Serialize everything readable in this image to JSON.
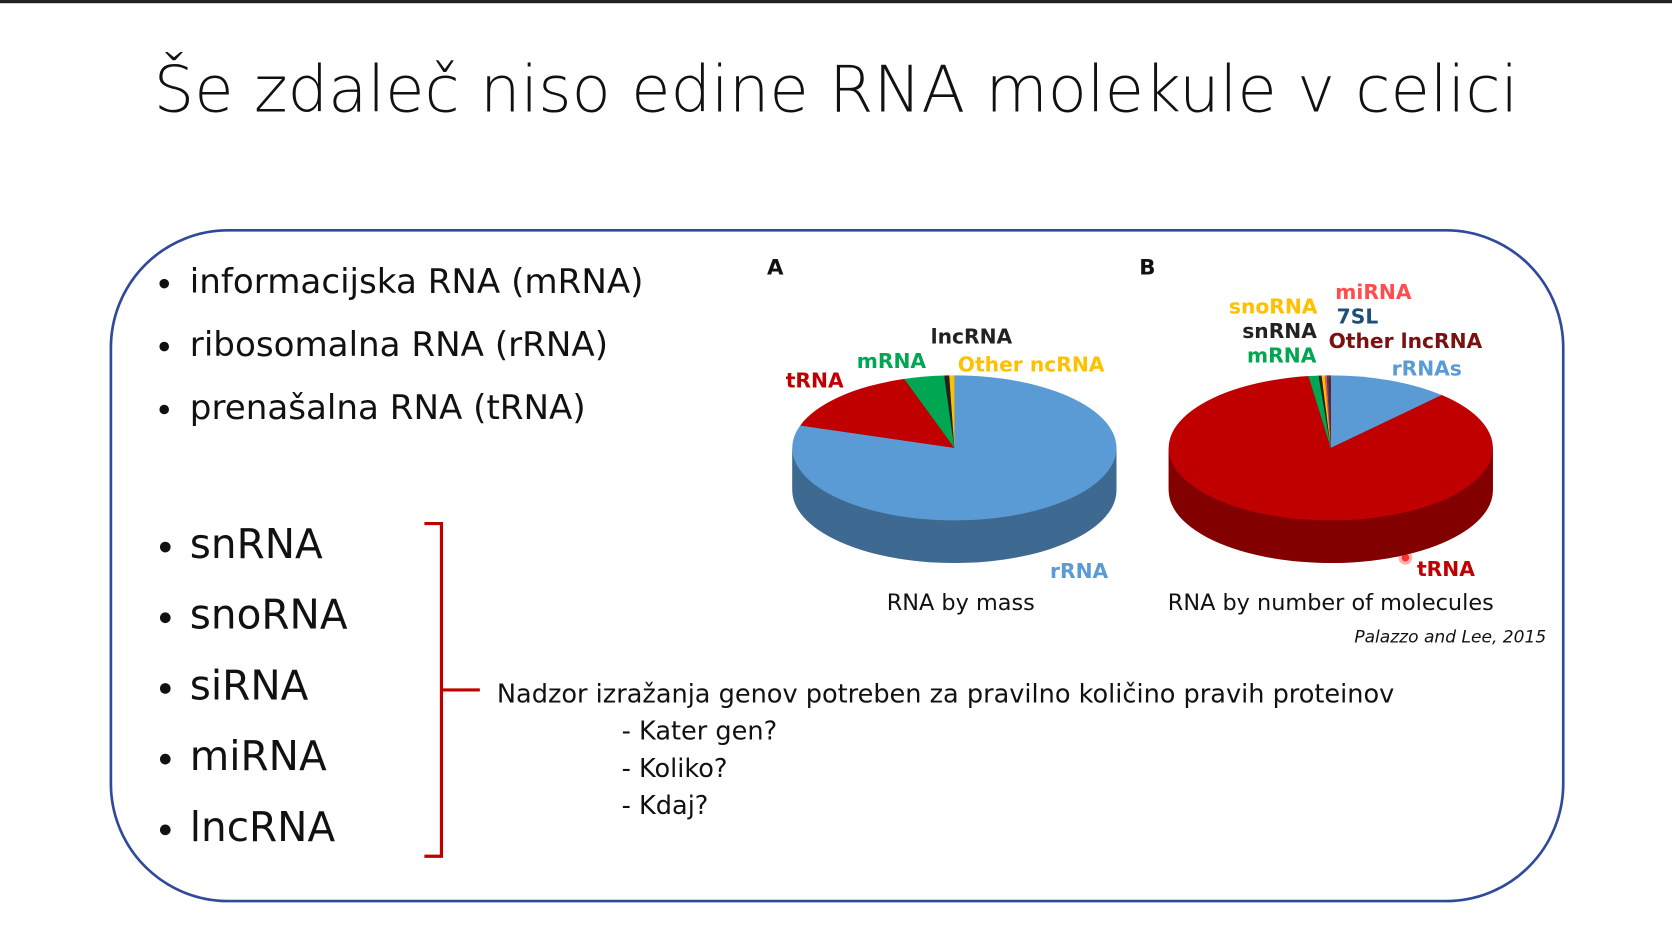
{
  "slide": {
    "title": "Še zdaleč niso edine RNA molekule v celici",
    "bullets_main": [
      "informacijska RNA (mRNA)",
      "ribosomalna RNA (rRNA)",
      "prenašalna RNA (tRNA)"
    ],
    "bullets_other": [
      "snRNA",
      "snoRNA",
      "siRNA",
      "miRNA",
      "lncRNA"
    ],
    "note": {
      "text": "Nadzor izražanja genov potreben za pravilno količino pravih proteinov",
      "items": [
        "- Kater gen?",
        "- Koliko?",
        "- Kdaj?"
      ]
    },
    "figure": {
      "citation": "Palazzo and Lee, 2015",
      "panels": [
        {
          "letter": "A",
          "caption": "RNA by mass",
          "type": "pie",
          "slices": [
            {
              "name": "rRNA",
              "color": "#5b9bd5",
              "value": 80
            },
            {
              "name": "tRNA",
              "color": "#c00000",
              "value": 15
            },
            {
              "name": "mRNA",
              "color": "#00a651",
              "value": 4
            },
            {
              "name": "lncRNA",
              "color": "#222222",
              "value": 0.5
            },
            {
              "name": "Other ncRNA",
              "color": "#ffc000",
              "value": 0.5
            }
          ]
        },
        {
          "letter": "B",
          "caption": "RNA by number of molecules",
          "type": "pie",
          "slices": [
            {
              "name": "rRNAs",
              "color": "#5b9bd5",
              "value": 12
            },
            {
              "name": "tRNA",
              "color": "#c00000",
              "value": 85.8
            },
            {
              "name": "mRNA",
              "color": "#00a651",
              "value": 1
            },
            {
              "name": "snRNA",
              "color": "#222222",
              "value": 0.3
            },
            {
              "name": "snoRNA",
              "color": "#ffc000",
              "value": 0.3
            },
            {
              "name": "miRNA",
              "color": "#ff4d4d",
              "value": 0.2
            },
            {
              "name": "7SL",
              "color": "#1f4e79",
              "value": 0.2
            },
            {
              "name": "Other lncRNA",
              "color": "#7b1010",
              "value": 0.2
            }
          ]
        }
      ]
    }
  }
}
